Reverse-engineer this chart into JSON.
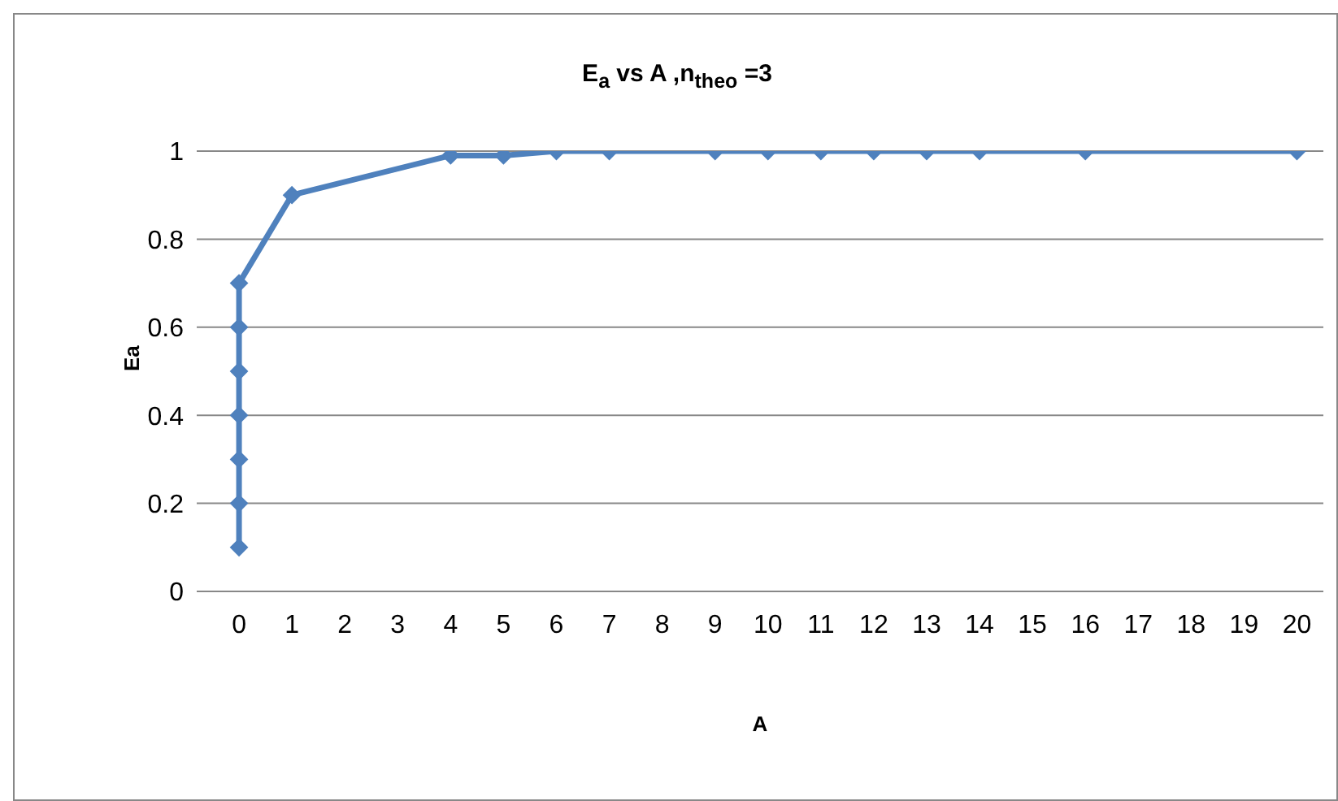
{
  "chart_data": {
    "type": "line",
    "title": "E$_{a}$ vs A ,n$_{theo}$ =3",
    "xlabel": "A",
    "ylabel": "Ea",
    "series": [
      {
        "color": "#4f81bd",
        "x": [
          0,
          0,
          0,
          0,
          0,
          0,
          0,
          1,
          4,
          5,
          6,
          7,
          9,
          10,
          11,
          12,
          13,
          14,
          16,
          20
        ],
        "values": [
          0.1,
          0.2,
          0.3,
          0.4,
          0.5,
          0.6,
          0.7,
          0.9,
          0.99,
          0.99,
          1,
          1,
          1,
          1,
          1,
          1,
          1,
          1,
          1,
          1
        ]
      }
    ],
    "xlim": [
      -0.8,
      20.5
    ],
    "xticks": [
      0,
      1,
      2,
      3,
      4,
      5,
      6,
      7,
      8,
      9,
      10,
      11,
      12,
      13,
      14,
      15,
      16,
      17,
      18,
      19,
      20
    ],
    "ylim": [
      0,
      1
    ],
    "yticks": [
      0,
      0.2,
      0.4,
      0.6,
      0.8,
      1
    ],
    "grid": "y",
    "marker": "diamond",
    "line_style": "solid",
    "legend": false
  }
}
